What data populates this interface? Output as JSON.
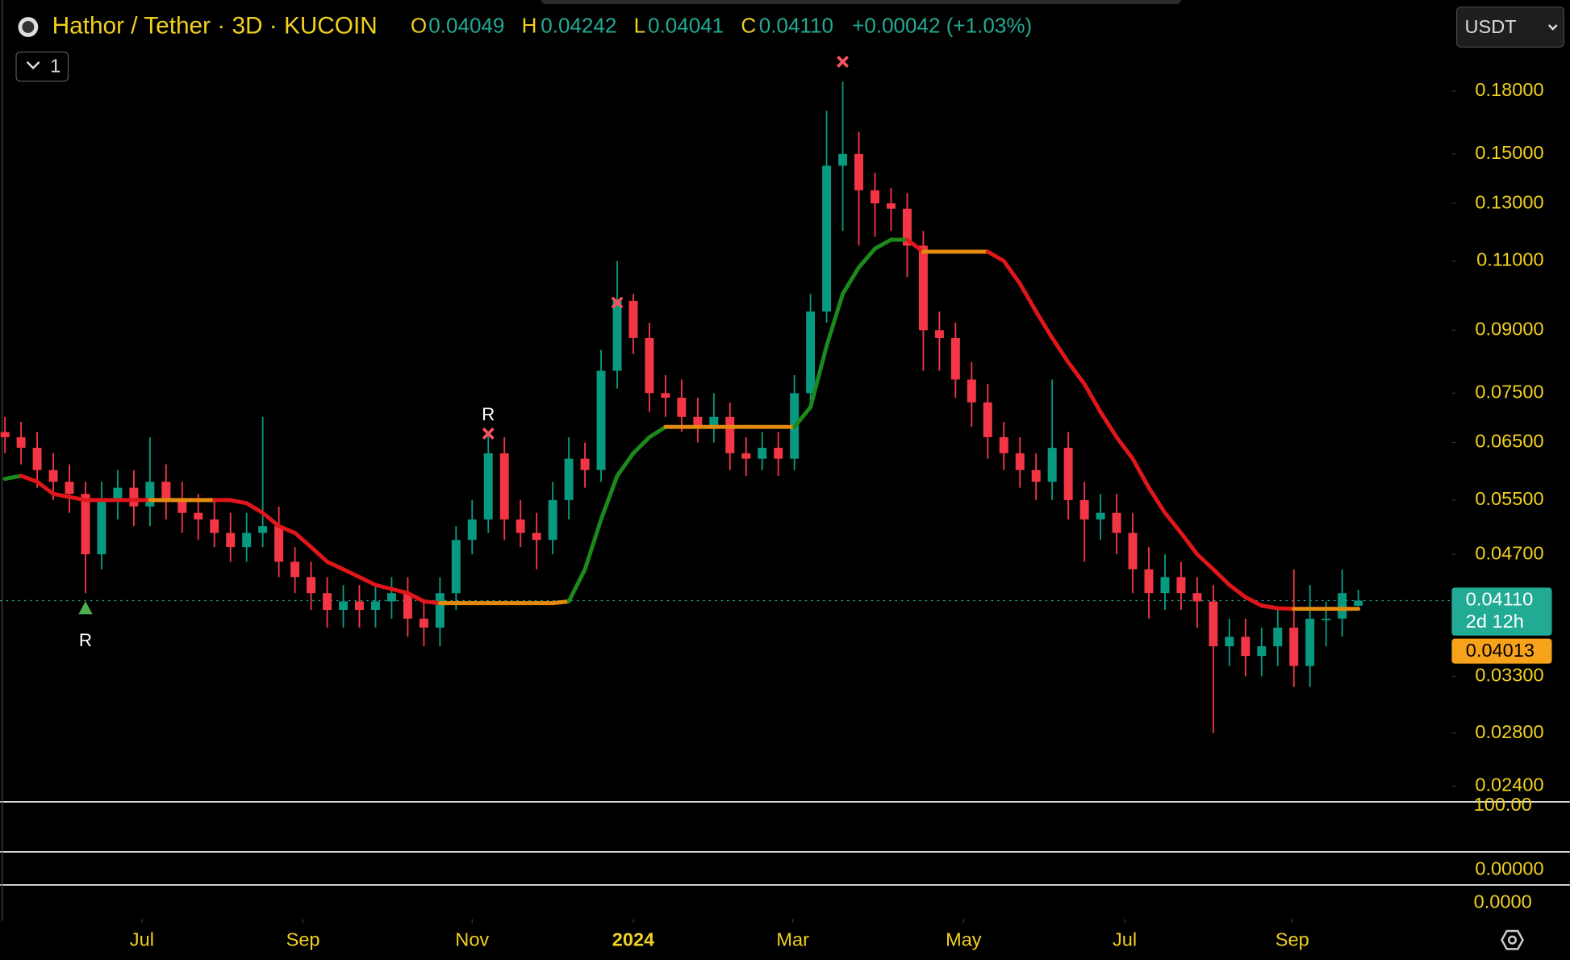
{
  "chart_data": {
    "type": "candlestick",
    "title": "Hathor / Tether · 3D · KUCOIN",
    "legend": {
      "o_label": "O",
      "o": "0.04049",
      "h_label": "H",
      "h": "0.04242",
      "l_label": "L",
      "l": "0.04041",
      "c_label": "C",
      "c": "0.04110",
      "change": "+0.00042 (+1.03%)"
    },
    "indicator_toggle": "1",
    "currency": "USDT",
    "log_scale": true,
    "up_color": "#089981",
    "down_color": "#f23645",
    "open": [
      0.067,
      0.066,
      0.064,
      0.06,
      0.058,
      0.056,
      0.047,
      0.055,
      0.057,
      0.054,
      0.058,
      0.055,
      0.053,
      0.052,
      0.05,
      0.048,
      0.05,
      0.051,
      0.046,
      0.044,
      0.042,
      0.04,
      0.041,
      0.04,
      0.041,
      0.042,
      0.039,
      0.038,
      0.042,
      0.049,
      0.052,
      0.063,
      0.052,
      0.05,
      0.049,
      0.055,
      0.062,
      0.06,
      0.08,
      0.098,
      0.088,
      0.075,
      0.074,
      0.07,
      0.068,
      0.07,
      0.063,
      0.062,
      0.064,
      0.062,
      0.075,
      0.095,
      0.145,
      0.15,
      0.135,
      0.13,
      0.128,
      0.115,
      0.09,
      0.088,
      0.078,
      0.073,
      0.066,
      0.063,
      0.06,
      0.058,
      0.064,
      0.055,
      0.052,
      0.053,
      0.05,
      0.045,
      0.042,
      0.044,
      0.042,
      0.041,
      0.036,
      0.037,
      0.035,
      0.036,
      0.038,
      0.034,
      0.039,
      0.039,
      0.04049
    ],
    "high": [
      0.07,
      0.069,
      0.067,
      0.063,
      0.061,
      0.058,
      0.058,
      0.06,
      0.06,
      0.066,
      0.061,
      0.058,
      0.056,
      0.055,
      0.053,
      0.053,
      0.07,
      0.054,
      0.048,
      0.046,
      0.044,
      0.043,
      0.043,
      0.043,
      0.044,
      0.044,
      0.041,
      0.044,
      0.051,
      0.055,
      0.067,
      0.066,
      0.055,
      0.053,
      0.058,
      0.066,
      0.065,
      0.085,
      0.11,
      0.1,
      0.092,
      0.079,
      0.078,
      0.074,
      0.075,
      0.073,
      0.066,
      0.067,
      0.067,
      0.079,
      0.1,
      0.17,
      0.185,
      0.16,
      0.142,
      0.136,
      0.134,
      0.12,
      0.095,
      0.092,
      0.082,
      0.077,
      0.069,
      0.066,
      0.063,
      0.078,
      0.067,
      0.058,
      0.056,
      0.056,
      0.053,
      0.048,
      0.047,
      0.046,
      0.044,
      0.043,
      0.039,
      0.039,
      0.038,
      0.04,
      0.045,
      0.043,
      0.041,
      0.045,
      0.04242
    ],
    "low": [
      0.063,
      0.061,
      0.057,
      0.055,
      0.053,
      0.042,
      0.045,
      0.052,
      0.051,
      0.051,
      0.052,
      0.05,
      0.049,
      0.048,
      0.046,
      0.046,
      0.048,
      0.044,
      0.042,
      0.04,
      0.038,
      0.038,
      0.038,
      0.038,
      0.039,
      0.037,
      0.036,
      0.036,
      0.04,
      0.047,
      0.05,
      0.049,
      0.048,
      0.045,
      0.047,
      0.052,
      0.057,
      0.058,
      0.076,
      0.084,
      0.071,
      0.07,
      0.067,
      0.065,
      0.065,
      0.06,
      0.059,
      0.06,
      0.059,
      0.06,
      0.072,
      0.092,
      0.12,
      0.115,
      0.118,
      0.12,
      0.105,
      0.08,
      0.08,
      0.074,
      0.068,
      0.062,
      0.06,
      0.057,
      0.055,
      0.055,
      0.052,
      0.046,
      0.049,
      0.047,
      0.042,
      0.039,
      0.04,
      0.04,
      0.038,
      0.028,
      0.034,
      0.033,
      0.033,
      0.034,
      0.032,
      0.032,
      0.036,
      0.037,
      0.04041
    ],
    "close": [
      0.066,
      0.064,
      0.06,
      0.058,
      0.056,
      0.047,
      0.055,
      0.057,
      0.054,
      0.058,
      0.055,
      0.053,
      0.052,
      0.05,
      0.048,
      0.05,
      0.051,
      0.046,
      0.044,
      0.042,
      0.04,
      0.041,
      0.04,
      0.041,
      0.042,
      0.039,
      0.038,
      0.042,
      0.049,
      0.052,
      0.063,
      0.052,
      0.05,
      0.049,
      0.055,
      0.062,
      0.06,
      0.08,
      0.098,
      0.088,
      0.075,
      0.074,
      0.07,
      0.068,
      0.07,
      0.063,
      0.062,
      0.064,
      0.062,
      0.075,
      0.095,
      0.145,
      0.15,
      0.135,
      0.13,
      0.128,
      0.115,
      0.09,
      0.088,
      0.078,
      0.073,
      0.066,
      0.063,
      0.06,
      0.058,
      0.064,
      0.055,
      0.052,
      0.053,
      0.05,
      0.045,
      0.042,
      0.044,
      0.042,
      0.041,
      0.036,
      0.037,
      0.035,
      0.036,
      0.038,
      0.034,
      0.039,
      0.039,
      0.042,
      0.0411
    ],
    "trend": {
      "values": [
        0.0585,
        0.059,
        0.058,
        0.056,
        0.0555,
        0.055,
        0.055,
        0.055,
        0.055,
        0.055,
        0.055,
        0.055,
        0.055,
        0.055,
        0.055,
        0.0545,
        0.053,
        0.051,
        0.05,
        0.048,
        0.046,
        0.045,
        0.044,
        0.043,
        0.0425,
        0.042,
        0.041,
        0.0408,
        0.0408,
        0.0408,
        0.0408,
        0.0408,
        0.0408,
        0.0408,
        0.0408,
        0.041,
        0.045,
        0.052,
        0.059,
        0.063,
        0.066,
        0.068,
        0.068,
        0.068,
        0.068,
        0.068,
        0.068,
        0.068,
        0.068,
        0.068,
        0.072,
        0.086,
        0.1,
        0.108,
        0.114,
        0.117,
        0.117,
        0.113,
        0.113,
        0.113,
        0.113,
        0.113,
        0.11,
        0.103,
        0.095,
        0.088,
        0.082,
        0.077,
        0.071,
        0.066,
        0.062,
        0.057,
        0.053,
        0.05,
        0.047,
        0.045,
        0.043,
        0.0415,
        0.0405,
        0.0402,
        0.04013,
        0.04013,
        0.04013,
        0.04013,
        0.04013
      ],
      "colors": [
        "#1b8a1b",
        "#e0161b",
        "#e0161b",
        "#e0161b",
        "#e0161b",
        "#e0161b",
        "#e0161b",
        "#e0161b",
        "#e0161b",
        "#e58a10",
        "#e58a10",
        "#e58a10",
        "#e58a10",
        "#e0161b",
        "#e0161b",
        "#e0161b",
        "#e0161b",
        "#e0161b",
        "#e0161b",
        "#e0161b",
        "#e0161b",
        "#e0161b",
        "#e0161b",
        "#e0161b",
        "#e0161b",
        "#e0161b",
        "#e0161b",
        "#e58a10",
        "#e58a10",
        "#e58a10",
        "#e58a10",
        "#e58a10",
        "#e58a10",
        "#e58a10",
        "#e58a10",
        "#1b8a1b",
        "#1b8a1b",
        "#1b8a1b",
        "#1b8a1b",
        "#1b8a1b",
        "#1b8a1b",
        "#e58a10",
        "#e58a10",
        "#e58a10",
        "#e58a10",
        "#e58a10",
        "#e58a10",
        "#e58a10",
        "#e58a10",
        "#1b8a1b",
        "#1b8a1b",
        "#1b8a1b",
        "#1b8a1b",
        "#1b8a1b",
        "#1b8a1b",
        "#1b8a1b",
        "#e0161b",
        "#e58a10",
        "#e58a10",
        "#e58a10",
        "#e58a10",
        "#e0161b",
        "#e0161b",
        "#e0161b",
        "#e0161b",
        "#e0161b",
        "#e0161b",
        "#e0161b",
        "#e0161b",
        "#e0161b",
        "#e0161b",
        "#e0161b",
        "#e0161b",
        "#e0161b",
        "#e0161b",
        "#e0161b",
        "#e0161b",
        "#e0161b",
        "#e0161b",
        "#e0161b",
        "#e58a10",
        "#e58a10",
        "#e58a10",
        "#e58a10",
        "#e58a10"
      ]
    },
    "signals": [
      {
        "shape": "triangle",
        "index": 5,
        "price": 0.0402,
        "label": "R",
        "color": "#4caf50"
      },
      {
        "shape": "x",
        "index": 30,
        "price": 0.0667,
        "label": "R",
        "color": "#f7525f"
      },
      {
        "shape": "x",
        "index": 38,
        "price": 0.0975,
        "color": "#f7525f"
      },
      {
        "shape": "x",
        "index": 52,
        "price": 0.196,
        "color": "#f7525f"
      }
    ],
    "last_price": {
      "value": 0.0411,
      "label": "0.04110",
      "countdown": "2d 12h",
      "color": "#22ab94"
    },
    "trend_price": {
      "value": 0.04013,
      "label": "0.04013",
      "color": "#f7a21b"
    },
    "ylim": [
      0.023,
      0.2344
    ],
    "yticks": [
      {
        "value": 0.18,
        "label": "0.18000"
      },
      {
        "value": 0.15,
        "label": "0.15000"
      },
      {
        "value": 0.13,
        "label": "0.13000"
      },
      {
        "value": 0.11,
        "label": "0.11000"
      },
      {
        "value": 0.09,
        "label": "0.09000"
      },
      {
        "value": 0.075,
        "label": "0.07500"
      },
      {
        "value": 0.065,
        "label": "0.06500"
      },
      {
        "value": 0.055,
        "label": "0.05500"
      },
      {
        "value": 0.047,
        "label": "0.04700"
      },
      {
        "value": 0.033,
        "label": "0.03300"
      },
      {
        "value": 0.028,
        "label": "0.02800"
      },
      {
        "value": 0.024,
        "label": "0.02400"
      }
    ],
    "xlim": [
      -0.3,
      89.8
    ],
    "xticks": [
      {
        "value": 8.5,
        "label": "Jul"
      },
      {
        "value": 18.5,
        "label": "Sep"
      },
      {
        "value": 29,
        "label": "Nov"
      },
      {
        "value": 39,
        "label": "2024"
      },
      {
        "value": 48.9,
        "label": "Mar"
      },
      {
        "value": 59.5,
        "label": "May"
      },
      {
        "value": 69.5,
        "label": "Jul"
      },
      {
        "value": 79.9,
        "label": "Sep"
      }
    ],
    "pane_labels": [
      "100.00",
      "0.00000",
      "0.0000"
    ]
  }
}
